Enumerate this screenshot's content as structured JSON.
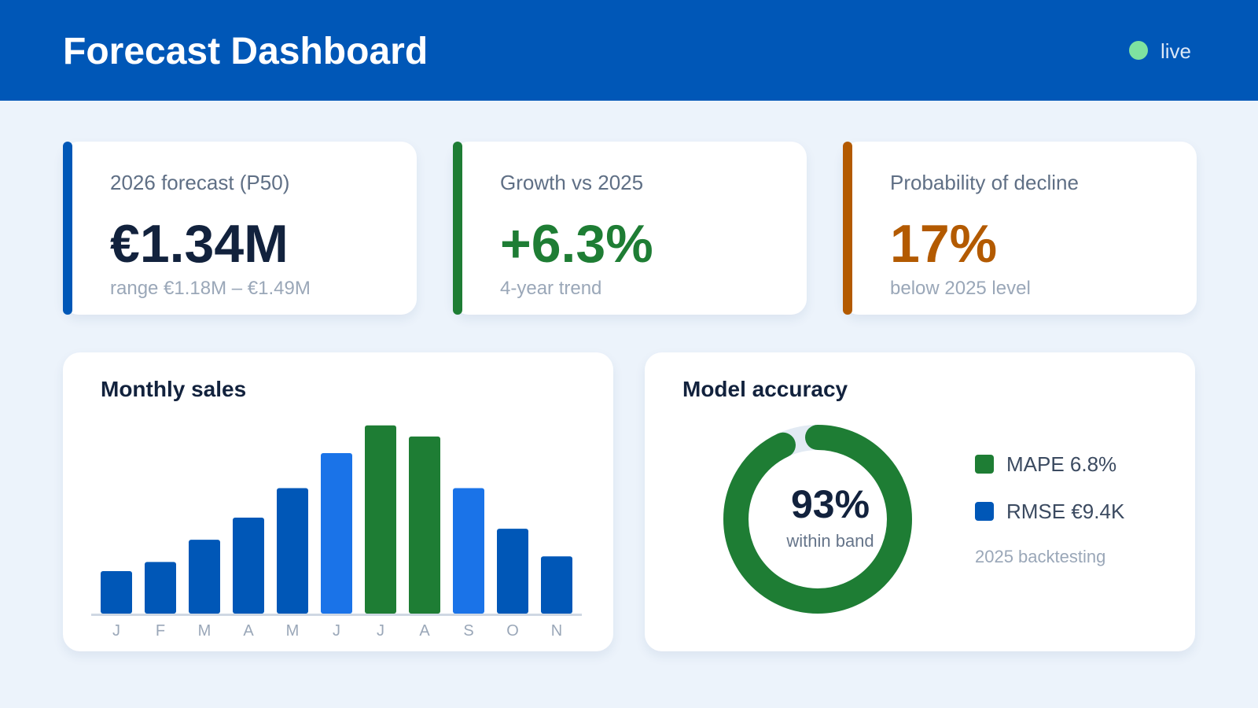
{
  "header": {
    "title": "Forecast Dashboard",
    "status_label": "live",
    "status_color": "#7ee2a0"
  },
  "kpis": [
    {
      "label": "2026 forecast (P50)",
      "value": "€1.34M",
      "sub": "range €1.18M – €1.49M",
      "accent": "#0057b7",
      "value_color": "#12223d"
    },
    {
      "label": "Growth vs 2025",
      "value": "+6.3%",
      "sub": "4-year trend",
      "accent": "#1e7d34",
      "value_color": "#1e7d34"
    },
    {
      "label": "Probability of decline",
      "value": "17%",
      "sub": "below 2025 level",
      "accent": "#b35a00",
      "value_color": "#b35a00"
    }
  ],
  "sales_panel": {
    "title": "Monthly sales"
  },
  "chart_data": {
    "type": "bar",
    "title": "Monthly sales",
    "categories": [
      "J",
      "F",
      "M",
      "A",
      "M",
      "J",
      "J",
      "A",
      "S",
      "O",
      "N"
    ],
    "values": [
      23,
      28,
      40,
      52,
      68,
      87,
      102,
      96,
      68,
      46,
      31
    ],
    "bar_colors": [
      "#0057b7",
      "#0057b7",
      "#0057b7",
      "#0057b7",
      "#0057b7",
      "#1a73e8",
      "#1e7d34",
      "#1e7d34",
      "#1a73e8",
      "#0057b7",
      "#0057b7"
    ],
    "ylim": [
      0,
      110
    ],
    "grid": false,
    "xlabel": "",
    "ylabel": ""
  },
  "accuracy_panel": {
    "title": "Model accuracy",
    "donut_value": "93%",
    "donut_fraction": 0.93,
    "donut_caption": "within band",
    "donut_color": "#1e7d34",
    "donut_track_color": "#e2eaf3",
    "legend": [
      {
        "label": "MAPE 6.8%",
        "color": "#1e7d34"
      },
      {
        "label": "RMSE €9.4K",
        "color": "#0057b7"
      }
    ],
    "note": "2025 backtesting"
  }
}
